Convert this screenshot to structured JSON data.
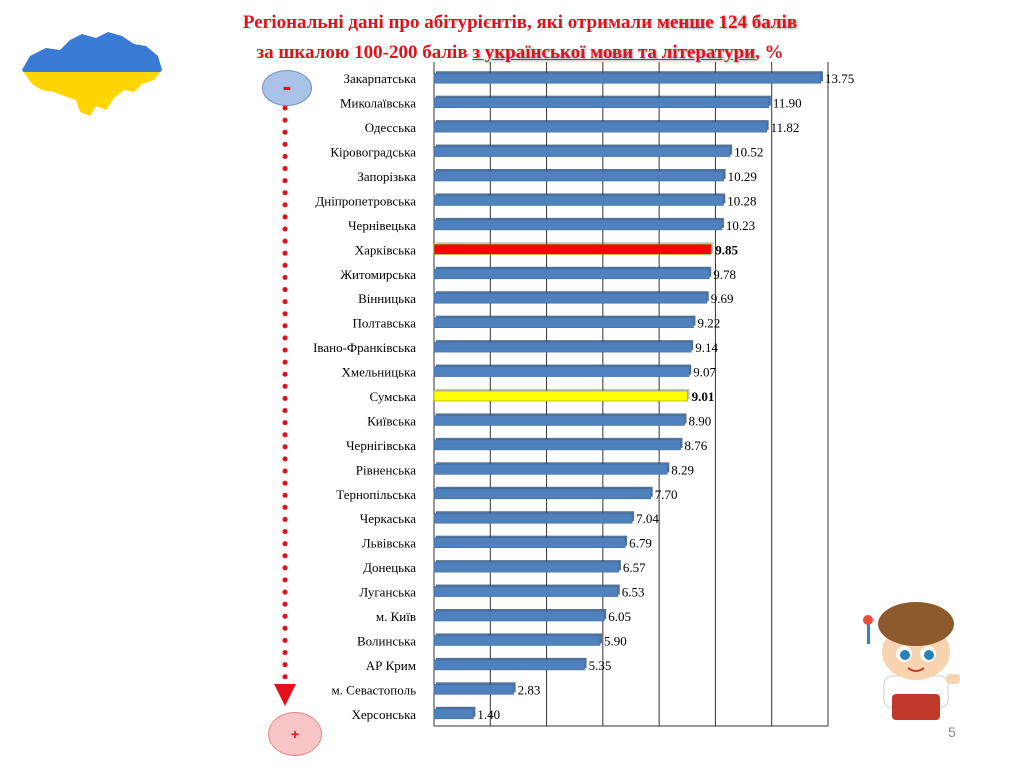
{
  "slide": {
    "title_line1_a": "Регіональні дані про абітурієнтів, які отримали ",
    "title_line1_b": "менше 124 балів",
    "title_line2_a": "за шкалою 100-200 балів ",
    "title_line2_b": "з української мови та літератури",
    "title_line2_c": ", %",
    "minus_sign": "-",
    "plus_sign": "+",
    "slide_number": "5"
  },
  "colors": {
    "title": "#e3101b",
    "bar": "#4f81bd",
    "highlight_kharkiv": "#ff0000",
    "highlight_sumy": "#ffff00",
    "arrow": "#e3101b"
  },
  "chart_data": {
    "type": "bar",
    "orientation": "horizontal",
    "title": "",
    "xlabel": "",
    "ylabel": "",
    "xlim": [
      0,
      14
    ],
    "grid": true,
    "categories": [
      "Закарпатська",
      "Миколаївська",
      "Одесська",
      "Кіровоградська",
      "Запорізька",
      "Дніпропетровська",
      "Чернівецька",
      "Харківська",
      "Житомирська",
      "Вінницька",
      "Полтавська",
      "Івано-Франківська",
      "Хмельницька",
      "Сумська",
      "Київська",
      "Чернігівська",
      "Рівненська",
      "Тернопільська",
      "Черкаська",
      "Львівська",
      "Донецька",
      "Луганська",
      "м. Київ",
      "Волинська",
      "АР Крим",
      "м. Севастополь",
      "Херсонська"
    ],
    "values": [
      13.75,
      11.9,
      11.82,
      10.52,
      10.29,
      10.28,
      10.23,
      9.85,
      9.78,
      9.69,
      9.22,
      9.14,
      9.07,
      9.01,
      8.9,
      8.76,
      8.29,
      7.7,
      7.04,
      6.79,
      6.57,
      6.53,
      6.05,
      5.9,
      5.35,
      2.83,
      1.4
    ],
    "labels": [
      "13.75",
      "11.90",
      "11.82",
      "10.52",
      "10.29",
      "10.28",
      "10.23",
      "9.85",
      "9.78",
      "9.69",
      "9.22",
      "9.14",
      "9.07",
      "9.01",
      "8.90",
      "8.76",
      "8.29",
      "7.70",
      "7.04",
      "6.79",
      "6.57",
      "6.53",
      "6.05",
      "5.90",
      "5.35",
      "2.83",
      "1.40"
    ],
    "highlights": [
      {
        "category": "Харківська",
        "color": "#ff0000",
        "bold_label": true
      },
      {
        "category": "Сумська",
        "color": "#ffff00",
        "bold_label": true
      }
    ]
  }
}
